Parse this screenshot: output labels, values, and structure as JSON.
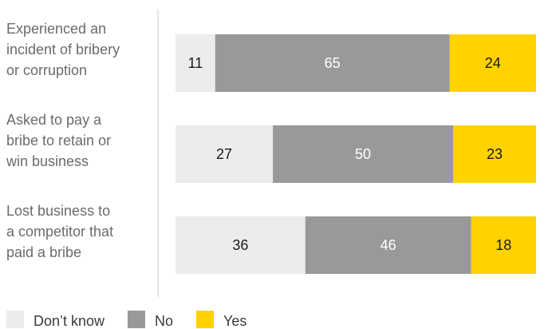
{
  "chart_data": {
    "type": "bar",
    "orientation": "horizontal",
    "stacked": true,
    "categories": [
      [
        "Experienced an",
        "incident of bribery",
        "or corruption"
      ],
      [
        "Asked to pay a",
        "bribe to retain or",
        "win business"
      ],
      [
        "Lost business to",
        "a competitor that",
        "paid a bribe"
      ]
    ],
    "series": [
      {
        "name": "Don’t know",
        "values": [
          11,
          27,
          36
        ],
        "color": "#ececec",
        "label_color": "#1a1a1a"
      },
      {
        "name": "No",
        "values": [
          65,
          50,
          46
        ],
        "color": "#999999",
        "label_color": "#ffffff"
      },
      {
        "name": "Yes",
        "values": [
          24,
          23,
          18
        ],
        "color": "#ffd200",
        "label_color": "#1a1a1a"
      }
    ],
    "xlim": [
      0,
      100
    ],
    "grid": false,
    "legend": "bottom-left",
    "title": "",
    "xlabel": "",
    "ylabel": ""
  }
}
